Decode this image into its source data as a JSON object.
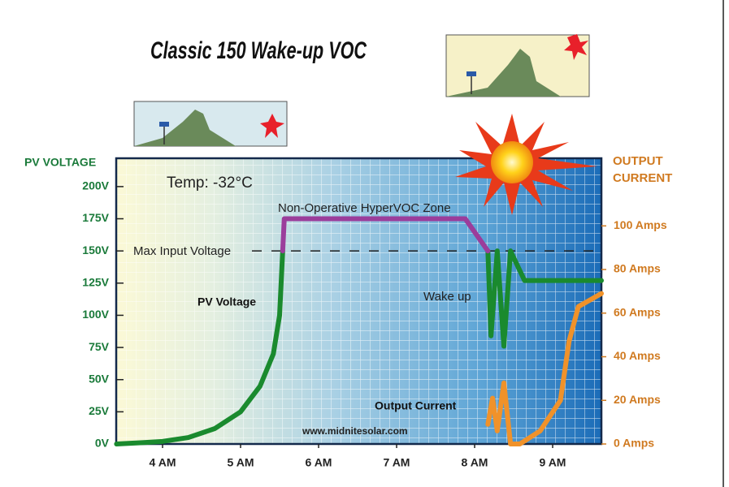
{
  "chart_data": {
    "type": "line",
    "title": "Classic 150 Wake-up VOC",
    "y_label": "PV VOLTAGE",
    "y2_label": "OUTPUT CURRENT",
    "temp_label": "Temp: -32°C",
    "zone_label": "Non-Operative HyperVOC Zone",
    "max_voltage_label": "Max Input Voltage",
    "wake_label": "Wake up",
    "website": "www.midnitesolar.com",
    "xlim": [
      3.406,
      9.625
    ],
    "xticks": [
      {
        "value": 4,
        "label": "4 AM"
      },
      {
        "value": 5,
        "label": "5 AM"
      },
      {
        "value": 6,
        "label": "6 AM"
      },
      {
        "value": 7,
        "label": "7 AM"
      },
      {
        "value": 8,
        "label": "8 AM"
      },
      {
        "value": 9,
        "label": "9 AM"
      }
    ],
    "ylim": [
      0,
      222
    ],
    "yticks": [
      {
        "value": 0,
        "label": "0V"
      },
      {
        "value": 25,
        "label": "25V"
      },
      {
        "value": 50,
        "label": "50V"
      },
      {
        "value": 75,
        "label": "75V"
      },
      {
        "value": 100,
        "label": "100V"
      },
      {
        "value": 125,
        "label": "125V"
      },
      {
        "value": 150,
        "label": "150V"
      },
      {
        "value": 175,
        "label": "175V"
      },
      {
        "value": 200,
        "label": "200V"
      }
    ],
    "y2lim": [
      0,
      131
    ],
    "y2ticks": [
      {
        "value": 0,
        "label": "0 Amps"
      },
      {
        "value": 20,
        "label": "20 Amps"
      },
      {
        "value": 40,
        "label": "40 Amps"
      },
      {
        "value": 60,
        "label": "60 Amps"
      },
      {
        "value": 80,
        "label": "80 Amps"
      },
      {
        "value": 100,
        "label": "100 Amps"
      }
    ],
    "series": [
      {
        "name": "PV Voltage",
        "color": "#1a8a2e",
        "x": [
          3.41,
          3.74,
          4.0,
          4.33,
          4.67,
          5.0,
          5.25,
          5.42,
          5.5,
          5.54,
          7.0,
          8.17,
          8.21,
          8.29,
          8.375,
          8.46,
          8.64,
          9.625
        ],
        "values": [
          0,
          1,
          2,
          5,
          12,
          25,
          45,
          70,
          100,
          150,
          null,
          150,
          84,
          150,
          76,
          150,
          127,
          127
        ]
      },
      {
        "name": "Non-Operative HyperVOC Zone",
        "color": "#9b3d9b",
        "x": [
          5.54,
          5.56,
          7.88,
          8.17
        ],
        "values": [
          150,
          175,
          175,
          150
        ]
      },
      {
        "name": "Output Current",
        "color": "#f0922a",
        "axis": "y2",
        "x": [
          8.17,
          8.23,
          8.29,
          8.375,
          8.46,
          8.58,
          8.84,
          9.1,
          9.21,
          9.33,
          9.625
        ],
        "values": [
          9,
          21,
          6,
          28,
          0,
          0,
          6,
          20,
          47,
          63,
          69
        ]
      }
    ]
  }
}
